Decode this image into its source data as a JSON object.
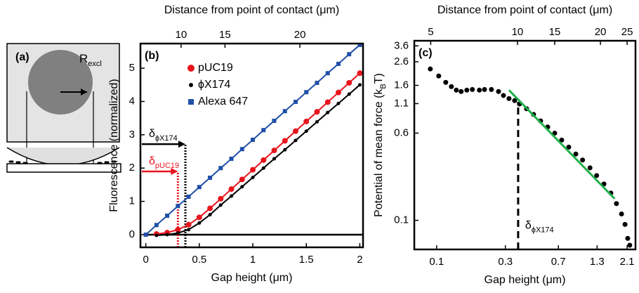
{
  "panel_a": {
    "label": "(a)",
    "radius_label": {
      "main": "R",
      "sub": "excl"
    }
  },
  "chart_data": [
    {
      "type": "scatter",
      "panel_label": "(b)",
      "xlabel": "Gap height (μm)",
      "ylabel": "Fluorescence (normalized)",
      "x2label": "Distance from point of contact (μm)",
      "xlim": [
        -0.05,
        2.03
      ],
      "ylim": [
        -0.38,
        5.74
      ],
      "xticks": [
        0,
        0.5,
        1,
        1.5,
        2
      ],
      "yticks": [
        0,
        1,
        2,
        3,
        4,
        5
      ],
      "x2ticks": [
        {
          "value": 0.33,
          "label": "10"
        },
        {
          "value": 0.74,
          "label": "15"
        },
        {
          "value": 1.44,
          "label": "20"
        }
      ],
      "hline": 0,
      "series": [
        {
          "name": "pUC19",
          "color": "#e8141c",
          "marker": "circle",
          "x": [
            0.1,
            0.2,
            0.3,
            0.4,
            0.5,
            0.6,
            0.7,
            0.8,
            0.9,
            1.0,
            1.1,
            1.2,
            1.3,
            1.4,
            1.5,
            1.6,
            1.7,
            1.8,
            1.9,
            2.0
          ],
          "values": [
            0.02,
            0.06,
            0.15,
            0.3,
            0.52,
            0.79,
            1.08,
            1.37,
            1.66,
            1.95,
            2.24,
            2.53,
            2.82,
            3.11,
            3.4,
            3.69,
            3.98,
            4.27,
            4.56,
            4.85
          ]
        },
        {
          "name": "ϕX174",
          "color": "#000000",
          "marker": "dot",
          "x": [
            0.1,
            0.2,
            0.3,
            0.4,
            0.5,
            0.6,
            0.7,
            0.8,
            0.9,
            1.0,
            1.1,
            1.2,
            1.3,
            1.4,
            1.5,
            1.6,
            1.7,
            1.8,
            1.9,
            2.0
          ],
          "values": [
            -0.02,
            0,
            0.05,
            0.15,
            0.35,
            0.6,
            0.89,
            1.16,
            1.44,
            1.72,
            2.0,
            2.28,
            2.55,
            2.83,
            3.11,
            3.39,
            3.67,
            3.94,
            4.22,
            4.5
          ]
        },
        {
          "name": "Alexa 647",
          "color": "#1f4fa8",
          "marker": "square",
          "x": [
            0,
            0.1,
            0.2,
            0.3,
            0.4,
            0.5,
            0.6,
            0.7,
            0.8,
            0.9,
            1.0,
            1.1,
            1.2,
            1.3,
            1.4,
            1.5,
            1.6,
            1.7,
            1.8,
            1.9,
            2.0
          ],
          "values": [
            0,
            0.29,
            0.57,
            0.86,
            1.14,
            1.43,
            1.71,
            2.0,
            2.28,
            2.57,
            2.85,
            3.14,
            3.42,
            3.71,
            3.99,
            4.28,
            4.56,
            4.85,
            5.13,
            5.42,
            5.7
          ]
        }
      ],
      "vlines": [
        {
          "x": 0.37,
          "y": 2.72,
          "color": "#000000",
          "label": {
            "main": "δ",
            "sub": "ϕX174"
          }
        },
        {
          "x": 0.3,
          "y": 1.9,
          "color": "#e8141c",
          "label": {
            "main": "δ",
            "sub": "pUC19"
          }
        }
      ]
    },
    {
      "type": "scatter",
      "panel_label": "(c)",
      "xlabel": "Gap height (μm)",
      "ylabel": {
        "main": "Potential of mean force (k",
        "sub": "B",
        "tail": "T)"
      },
      "x2label": "Distance from point of contact (μm)",
      "log_x": true,
      "log_y": true,
      "xlim": [
        0.07,
        2.4
      ],
      "ylim": [
        0.055,
        4.0
      ],
      "xticks": [
        0.1,
        0.3,
        0.7,
        1.3,
        2.1
      ],
      "yticks": [
        0.1,
        0.6,
        1.1,
        1.6,
        2.6,
        3.6
      ],
      "x2ticks": [
        {
          "value": 0.091,
          "label": "5"
        },
        {
          "value": 0.364,
          "label": "10"
        },
        {
          "value": 0.66,
          "label": "15"
        },
        {
          "value": 1.37,
          "label": "20"
        },
        {
          "value": 2.1,
          "label": "25"
        }
      ],
      "color": "#000000",
      "x": [
        0.0904,
        0.1034,
        0.1157,
        0.1266,
        0.137,
        0.148,
        0.162,
        0.177,
        0.198,
        0.215,
        0.24,
        0.269,
        0.291,
        0.318,
        0.348,
        0.376,
        0.421,
        0.471,
        0.527,
        0.59,
        0.66,
        0.738,
        0.826,
        0.925,
        1.03,
        1.16,
        1.29,
        1.45,
        1.62,
        1.77,
        1.92,
        2.03,
        2.12,
        2.19
      ],
      "values": [
        2.24,
        1.94,
        1.7,
        1.56,
        1.45,
        1.41,
        1.45,
        1.47,
        1.45,
        1.47,
        1.47,
        1.41,
        1.3,
        1.22,
        1.17,
        1.09,
        0.99,
        0.88,
        0.77,
        0.68,
        0.6,
        0.52,
        0.45,
        0.39,
        0.345,
        0.294,
        0.251,
        0.211,
        0.175,
        0.141,
        0.114,
        0.092,
        0.069,
        0.06
      ],
      "fit": {
        "x": [
          0.318,
          1.72
        ],
        "values": [
          1.45,
          0.156
        ],
        "color": "#22b14c"
      },
      "vlines": [
        {
          "x": 0.368,
          "y": 1.14,
          "color": "#000000",
          "dashed": true,
          "label": {
            "main": "δ",
            "sub": "ϕX174"
          }
        }
      ]
    }
  ]
}
